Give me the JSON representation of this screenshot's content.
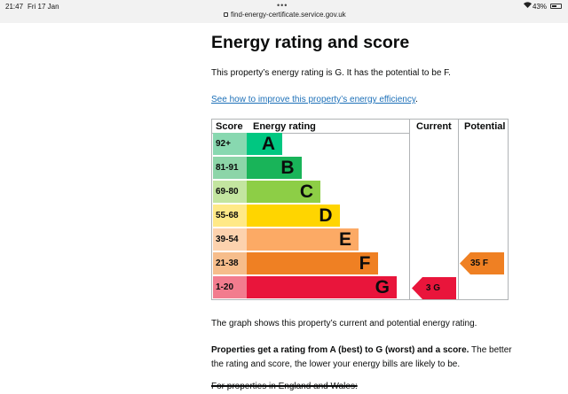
{
  "statusbar": {
    "time": "21:47",
    "date": "Fri 17 Jan",
    "dots": "•••",
    "url": "find-energy-certificate.service.gov.uk",
    "wifi_icon": "wifi-icon",
    "battery_text": "43%",
    "battery_level": 0.43
  },
  "page": {
    "title": "Energy rating and score",
    "summary": "This property’s energy rating is G. It has the potential to be F.",
    "improve_link": "See how to improve this property’s energy efficiency",
    "improve_link_period": ".",
    "graph_note": "The graph shows this property’s current and potential energy rating.",
    "ratings_bold": "Properties get a rating from A (best) to G (worst) and a score.",
    "ratings_rest": " The better the rating and score, the lower your energy bills are likely to be.",
    "england_wales": "For properties in England and Wales:"
  },
  "chart_data": {
    "type": "table",
    "headers": {
      "score": "Score",
      "rating": "Energy rating",
      "current": "Current",
      "potential": "Potential"
    },
    "bands": [
      {
        "score": "92+",
        "letter": "A",
        "color": "#00c781",
        "score_color": "#88d8b0"
      },
      {
        "score": "81-91",
        "letter": "B",
        "color": "#19b459",
        "score_color": "#8cd5a8"
      },
      {
        "score": "69-80",
        "letter": "C",
        "color": "#8dce46",
        "score_color": "#c3e5a0"
      },
      {
        "score": "55-68",
        "letter": "D",
        "color": "#ffd500",
        "score_color": "#ffe987"
      },
      {
        "score": "39-54",
        "letter": "E",
        "color": "#fcaa65",
        "score_color": "#fdd2ae"
      },
      {
        "score": "21-38",
        "letter": "F",
        "color": "#ef8023",
        "score_color": "#f6bd8b"
      },
      {
        "score": "1-20",
        "letter": "G",
        "color": "#e9153b",
        "score_color": "#f27c8e"
      }
    ],
    "current": {
      "score": 3,
      "letter": "G",
      "label": "3  G",
      "color": "#e9153b"
    },
    "potential": {
      "score": 35,
      "letter": "F",
      "label": "35  F",
      "color": "#ef8023"
    }
  }
}
